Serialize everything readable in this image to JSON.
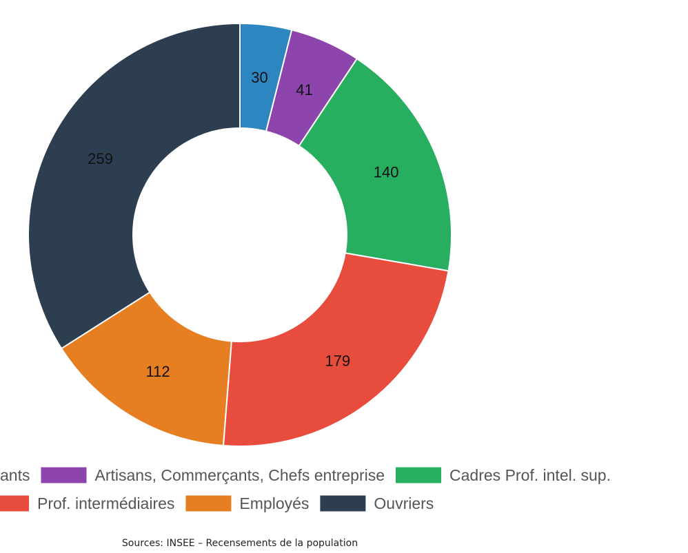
{
  "chart_data": {
    "type": "pie",
    "variant": "donut",
    "categories": [
      "Agriculteurs exploitants",
      "Artisans, Commerçants, Chefs entreprise",
      "Cadres Prof. intel. sup.",
      "Prof. intermédiaires",
      "Employés",
      "Ouvriers"
    ],
    "legend_text": [
      "ants",
      "Artisans, Commerçants, Chefs entreprise",
      "Cadres Prof. intel. sup.",
      "Prof. intermédiaires",
      "Employés",
      "Ouvriers"
    ],
    "values": [
      30,
      41,
      140,
      179,
      112,
      259
    ],
    "colors": [
      "#2e86c1",
      "#8e44ad",
      "#27ae60",
      "#e74c3c",
      "#e67e22",
      "#2c3e50"
    ],
    "data_labels": [
      "30",
      "41",
      "140",
      "179",
      "112",
      "259"
    ],
    "legend_placement": "bottom",
    "title": "",
    "source": "Sources: INSEE – Recensements de la population"
  }
}
